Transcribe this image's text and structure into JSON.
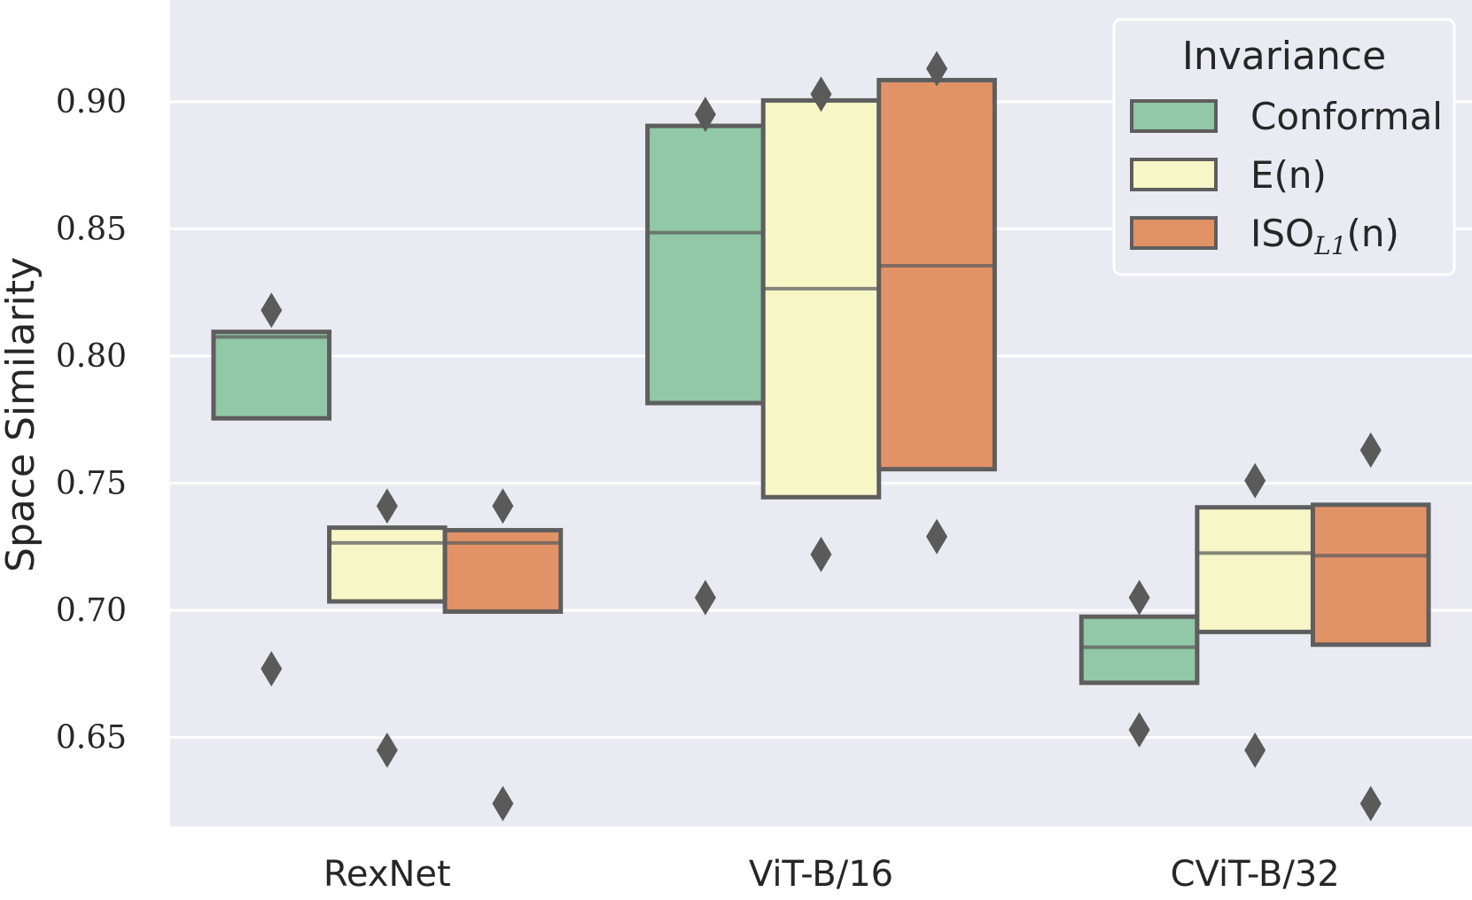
{
  "chart_data": {
    "type": "boxen",
    "ylabel": "Space Similarity",
    "xlabel": "",
    "ylim": [
      0.615,
      0.94
    ],
    "yticks": [
      0.65,
      0.7,
      0.75,
      0.8,
      0.85,
      0.9
    ],
    "ytick_labels": [
      "0.65",
      "0.70",
      "0.75",
      "0.80",
      "0.85",
      "0.90"
    ],
    "categories": [
      "RexNet",
      "ViT-B/16",
      "CViT-B/32"
    ],
    "grid": true,
    "legend": {
      "title": "Invariance",
      "placement": "top-right",
      "entries": [
        {
          "text": "Conformal",
          "base": "Conformal",
          "sub": ""
        },
        {
          "text": "E(n)",
          "base": "E(n)",
          "sub": ""
        },
        {
          "text": "ISO_{L1}(n)",
          "base": "ISO",
          "sub": "L1",
          "suffix": "(n)"
        }
      ]
    },
    "series": [
      {
        "name": "Conformal",
        "color": "#91c8a5",
        "boxes": [
          {
            "low": 0.7755,
            "high": 0.8095,
            "median": 0.8075,
            "outliers": [
              0.818,
              0.677
            ]
          },
          {
            "low": 0.7815,
            "high": 0.8905,
            "median": 0.8485,
            "outliers": [
              0.895,
              0.705
            ]
          },
          {
            "low": 0.6715,
            "high": 0.6975,
            "median": 0.6855,
            "outliers": [
              0.705,
              0.653
            ]
          }
        ]
      },
      {
        "name": "E(n)",
        "color": "#f6f6c6",
        "boxes": [
          {
            "low": 0.7035,
            "high": 0.7325,
            "median": 0.7265,
            "outliers": [
              0.741,
              0.645
            ]
          },
          {
            "low": 0.7445,
            "high": 0.9005,
            "median": 0.8265,
            "outliers": [
              0.903,
              0.722
            ]
          },
          {
            "low": 0.6915,
            "high": 0.7405,
            "median": 0.7225,
            "outliers": [
              0.751,
              0.645
            ]
          }
        ]
      },
      {
        "name": "ISO_{L1}(n)",
        "color": "#e29267",
        "boxes": [
          {
            "low": 0.6995,
            "high": 0.7315,
            "median": 0.7265,
            "outliers": [
              0.741,
              0.624
            ]
          },
          {
            "low": 0.7555,
            "high": 0.9085,
            "median": 0.8355,
            "outliers": [
              0.913,
              0.729
            ]
          },
          {
            "low": 0.6865,
            "high": 0.7415,
            "median": 0.7215,
            "outliers": [
              0.763,
              0.624
            ]
          }
        ]
      }
    ]
  }
}
